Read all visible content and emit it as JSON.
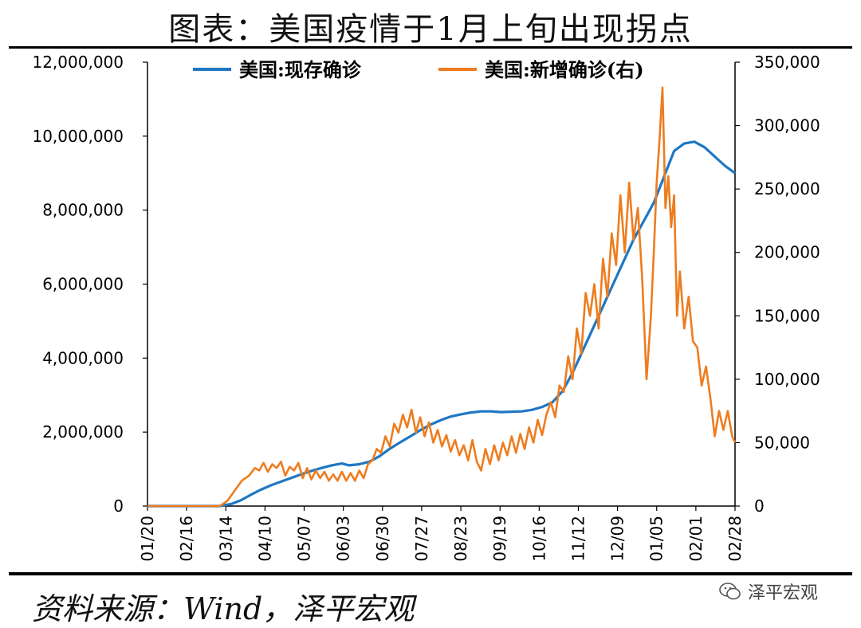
{
  "header": {
    "title": "图表：美国疫情于1月上旬出现拐点"
  },
  "footer": {
    "source": "资料来源：Wind，泽平宏观",
    "watermark": "泽平宏观"
  },
  "chart_data": {
    "type": "line",
    "x_tick_labels": [
      "01/20",
      "02/16",
      "03/14",
      "04/10",
      "05/07",
      "06/03",
      "06/30",
      "07/27",
      "08/23",
      "09/19",
      "10/16",
      "11/12",
      "12/09",
      "01/05",
      "02/01",
      "02/28"
    ],
    "x_range": [
      "2020-01-20",
      "2021-02-28"
    ],
    "y_left_ticks": [
      "0",
      "2,000,000",
      "4,000,000",
      "6,000,000",
      "8,000,000",
      "10,000,000",
      "12,000,000"
    ],
    "y_right_ticks": [
      "0",
      "50,000",
      "100,000",
      "150,000",
      "200,000",
      "250,000",
      "300,000",
      "350,000"
    ],
    "y_left_range": [
      0,
      12000000
    ],
    "y_right_range": [
      0,
      350000
    ],
    "legend_position": "top",
    "series": [
      {
        "name": "美国:现存确诊",
        "axis": "left",
        "color": "#1f77c4",
        "points": [
          [
            "2020-01-20",
            0
          ],
          [
            "2020-03-10",
            0
          ],
          [
            "2020-03-18",
            60000
          ],
          [
            "2020-03-24",
            150000
          ],
          [
            "2020-03-31",
            300000
          ],
          [
            "2020-04-07",
            440000
          ],
          [
            "2020-04-14",
            560000
          ],
          [
            "2020-04-21",
            660000
          ],
          [
            "2020-04-28",
            760000
          ],
          [
            "2020-05-05",
            860000
          ],
          [
            "2020-05-12",
            950000
          ],
          [
            "2020-05-19",
            1030000
          ],
          [
            "2020-05-26",
            1100000
          ],
          [
            "2020-06-02",
            1150000
          ],
          [
            "2020-06-07",
            1100000
          ],
          [
            "2020-06-14",
            1130000
          ],
          [
            "2020-06-21",
            1200000
          ],
          [
            "2020-06-28",
            1350000
          ],
          [
            "2020-07-05",
            1550000
          ],
          [
            "2020-07-12",
            1720000
          ],
          [
            "2020-07-19",
            1880000
          ],
          [
            "2020-07-26",
            2050000
          ],
          [
            "2020-08-02",
            2200000
          ],
          [
            "2020-08-09",
            2320000
          ],
          [
            "2020-08-16",
            2420000
          ],
          [
            "2020-08-23",
            2480000
          ],
          [
            "2020-08-30",
            2530000
          ],
          [
            "2020-09-06",
            2560000
          ],
          [
            "2020-09-13",
            2560000
          ],
          [
            "2020-09-20",
            2540000
          ],
          [
            "2020-09-27",
            2550000
          ],
          [
            "2020-10-04",
            2560000
          ],
          [
            "2020-10-11",
            2600000
          ],
          [
            "2020-10-18",
            2680000
          ],
          [
            "2020-10-25",
            2800000
          ],
          [
            "2020-11-01",
            3100000
          ],
          [
            "2020-11-08",
            3600000
          ],
          [
            "2020-11-15",
            4200000
          ],
          [
            "2020-11-22",
            4800000
          ],
          [
            "2020-11-29",
            5400000
          ],
          [
            "2020-12-06",
            6000000
          ],
          [
            "2020-12-13",
            6600000
          ],
          [
            "2020-12-20",
            7200000
          ],
          [
            "2020-12-27",
            7700000
          ],
          [
            "2021-01-03",
            8200000
          ],
          [
            "2021-01-10",
            8900000
          ],
          [
            "2021-01-17",
            9600000
          ],
          [
            "2021-01-24",
            9800000
          ],
          [
            "2021-01-31",
            9850000
          ],
          [
            "2021-02-07",
            9700000
          ],
          [
            "2021-02-14",
            9450000
          ],
          [
            "2021-02-21",
            9200000
          ],
          [
            "2021-02-28",
            9000000
          ]
        ]
      },
      {
        "name": "美国:新增确诊(右)",
        "axis": "right",
        "color": "#ed7d1f",
        "points": [
          [
            "2020-01-20",
            0
          ],
          [
            "2020-03-10",
            0
          ],
          [
            "2020-03-15",
            4000
          ],
          [
            "2020-03-20",
            12000
          ],
          [
            "2020-03-25",
            20000
          ],
          [
            "2020-03-30",
            24000
          ],
          [
            "2020-04-03",
            30000
          ],
          [
            "2020-04-06",
            28000
          ],
          [
            "2020-04-09",
            34000
          ],
          [
            "2020-04-12",
            27000
          ],
          [
            "2020-04-15",
            33000
          ],
          [
            "2020-04-18",
            30000
          ],
          [
            "2020-04-21",
            35000
          ],
          [
            "2020-04-24",
            24000
          ],
          [
            "2020-04-27",
            31000
          ],
          [
            "2020-04-30",
            28000
          ],
          [
            "2020-05-03",
            34000
          ],
          [
            "2020-05-06",
            22000
          ],
          [
            "2020-05-09",
            30000
          ],
          [
            "2020-05-12",
            21000
          ],
          [
            "2020-05-15",
            28000
          ],
          [
            "2020-05-18",
            22000
          ],
          [
            "2020-05-21",
            27000
          ],
          [
            "2020-05-24",
            20000
          ],
          [
            "2020-05-27",
            25000
          ],
          [
            "2020-05-30",
            20000
          ],
          [
            "2020-06-02",
            27000
          ],
          [
            "2020-06-05",
            20000
          ],
          [
            "2020-06-08",
            26000
          ],
          [
            "2020-06-11",
            20000
          ],
          [
            "2020-06-14",
            28000
          ],
          [
            "2020-06-17",
            22000
          ],
          [
            "2020-06-20",
            33000
          ],
          [
            "2020-06-23",
            36000
          ],
          [
            "2020-06-26",
            45000
          ],
          [
            "2020-06-29",
            42000
          ],
          [
            "2020-07-02",
            55000
          ],
          [
            "2020-07-05",
            47000
          ],
          [
            "2020-07-08",
            65000
          ],
          [
            "2020-07-11",
            58000
          ],
          [
            "2020-07-14",
            72000
          ],
          [
            "2020-07-17",
            62000
          ],
          [
            "2020-07-20",
            76000
          ],
          [
            "2020-07-23",
            58000
          ],
          [
            "2020-07-26",
            70000
          ],
          [
            "2020-07-29",
            55000
          ],
          [
            "2020-08-01",
            66000
          ],
          [
            "2020-08-04",
            50000
          ],
          [
            "2020-08-07",
            60000
          ],
          [
            "2020-08-10",
            47000
          ],
          [
            "2020-08-13",
            56000
          ],
          [
            "2020-08-16",
            43000
          ],
          [
            "2020-08-19",
            52000
          ],
          [
            "2020-08-22",
            40000
          ],
          [
            "2020-08-25",
            48000
          ],
          [
            "2020-08-28",
            36000
          ],
          [
            "2020-08-31",
            52000
          ],
          [
            "2020-09-03",
            35000
          ],
          [
            "2020-09-06",
            28000
          ],
          [
            "2020-09-09",
            45000
          ],
          [
            "2020-09-12",
            33000
          ],
          [
            "2020-09-15",
            48000
          ],
          [
            "2020-09-18",
            36000
          ],
          [
            "2020-09-21",
            50000
          ],
          [
            "2020-09-24",
            40000
          ],
          [
            "2020-09-27",
            55000
          ],
          [
            "2020-09-30",
            42000
          ],
          [
            "2020-10-03",
            57000
          ],
          [
            "2020-10-06",
            45000
          ],
          [
            "2020-10-09",
            62000
          ],
          [
            "2020-10-12",
            50000
          ],
          [
            "2020-10-15",
            68000
          ],
          [
            "2020-10-18",
            56000
          ],
          [
            "2020-10-21",
            72000
          ],
          [
            "2020-10-24",
            82000
          ],
          [
            "2020-10-27",
            70000
          ],
          [
            "2020-10-30",
            95000
          ],
          [
            "2020-11-02",
            90000
          ],
          [
            "2020-11-05",
            118000
          ],
          [
            "2020-11-08",
            100000
          ],
          [
            "2020-11-11",
            140000
          ],
          [
            "2020-11-14",
            120000
          ],
          [
            "2020-11-17",
            168000
          ],
          [
            "2020-11-20",
            150000
          ],
          [
            "2020-11-23",
            175000
          ],
          [
            "2020-11-26",
            140000
          ],
          [
            "2020-11-29",
            195000
          ],
          [
            "2020-12-02",
            165000
          ],
          [
            "2020-12-05",
            215000
          ],
          [
            "2020-12-08",
            190000
          ],
          [
            "2020-12-11",
            245000
          ],
          [
            "2020-12-14",
            200000
          ],
          [
            "2020-12-17",
            255000
          ],
          [
            "2020-12-20",
            210000
          ],
          [
            "2020-12-23",
            235000
          ],
          [
            "2020-12-26",
            180000
          ],
          [
            "2020-12-29",
            100000
          ],
          [
            "2021-01-01",
            150000
          ],
          [
            "2021-01-03",
            200000
          ],
          [
            "2021-01-05",
            255000
          ],
          [
            "2021-01-07",
            290000
          ],
          [
            "2021-01-09",
            330000
          ],
          [
            "2021-01-11",
            235000
          ],
          [
            "2021-01-13",
            260000
          ],
          [
            "2021-01-15",
            220000
          ],
          [
            "2021-01-17",
            245000
          ],
          [
            "2021-01-19",
            150000
          ],
          [
            "2021-01-21",
            185000
          ],
          [
            "2021-01-24",
            140000
          ],
          [
            "2021-01-27",
            165000
          ],
          [
            "2021-01-30",
            130000
          ],
          [
            "2021-02-02",
            125000
          ],
          [
            "2021-02-05",
            95000
          ],
          [
            "2021-02-08",
            110000
          ],
          [
            "2021-02-11",
            85000
          ],
          [
            "2021-02-14",
            55000
          ],
          [
            "2021-02-17",
            75000
          ],
          [
            "2021-02-20",
            60000
          ],
          [
            "2021-02-23",
            75000
          ],
          [
            "2021-02-26",
            55000
          ],
          [
            "2021-02-28",
            50000
          ]
        ]
      }
    ]
  }
}
